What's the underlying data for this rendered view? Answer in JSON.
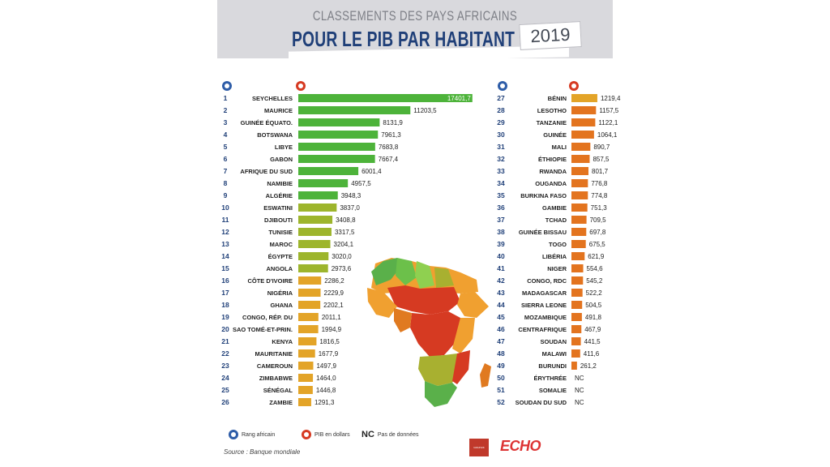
{
  "header": {
    "subtitle": "CLASSEMENTS DES PAYS AFRICAINS",
    "title": "POUR LE PIB PAR HABITANT",
    "year": "2019"
  },
  "legend": {
    "rank": "Rang africain",
    "gdp": "PIB en dollars",
    "nc_mark": "NC",
    "nc": "Pas de données"
  },
  "source": "Source : Banque mondiale",
  "logos": {
    "left": "GRAPHIK",
    "right": "ECHO"
  },
  "colors": {
    "title": "#1f3f78",
    "rank_icon": "#2e5da8",
    "gdp_icon": "#d63a22",
    "rank_number": "#1f3f78"
  },
  "chart_data": {
    "type": "bar",
    "title": "CLASSEMENTS DES PAYS AFRICAINS POUR LE PIB PAR HABITANT 2019",
    "ylabel": "PIB en dollars",
    "xlim": [
      0,
      17500
    ],
    "series": [
      {
        "name": "PIB par habitant (dollars)",
        "ranks": [
          1,
          2,
          3,
          4,
          5,
          6,
          7,
          8,
          9,
          10,
          11,
          12,
          13,
          14,
          15,
          16,
          17,
          18,
          19,
          20,
          21,
          22,
          23,
          24,
          25,
          26,
          27,
          28,
          29,
          30,
          31,
          32,
          33,
          34,
          35,
          36,
          37,
          38,
          39,
          40,
          41,
          42,
          43,
          44,
          45,
          46,
          47,
          48,
          49,
          50,
          51,
          52
        ],
        "categories": [
          "SEYCHELLES",
          "MAURICE",
          "GUINÉE ÉQUATO.",
          "BOTSWANA",
          "LIBYE",
          "GABON",
          "AFRIQUE DU SUD",
          "NAMIBIE",
          "ALGÉRIE",
          "ESWATINI",
          "DJIBOUTI",
          "TUNISIE",
          "MAROC",
          "ÉGYPTE",
          "ANGOLA",
          "CÔTE D'IVOIRE",
          "NIGÉRIA",
          "GHANA",
          "CONGO, RÉP. DU",
          "SAO TOMÉ-ET-PRIN.",
          "KENYA",
          "MAURITANIE",
          "CAMEROUN",
          "ZIMBABWE",
          "SÉNÉGAL",
          "ZAMBIE",
          "BÉNIN",
          "LESOTHO",
          "TANZANIE",
          "GUINÉE",
          "MALI",
          "ÉTHIOPIE",
          "RWANDA",
          "OUGANDA",
          "BURKINA FASO",
          "GAMBIE",
          "TCHAD",
          "GUINÉE BISSAU",
          "TOGO",
          "LIBÉRIA",
          "NIGER",
          "CONGO, RDC",
          "MADAGASCAR",
          "SIERRA LEONE",
          "MOZAMBIQUE",
          "CENTRAFRIQUE",
          "SOUDAN",
          "MALAWI",
          "BURUNDI",
          "ÉRYTHRÉE",
          "SOMALIE",
          "SOUDAN DU SUD"
        ],
        "values": [
          17401.7,
          11203.5,
          8131.9,
          7961.3,
          7683.8,
          7667.4,
          6001.4,
          4957.5,
          3948.3,
          3837.0,
          3408.8,
          3317.5,
          3204.1,
          3020.0,
          2973.6,
          2286.2,
          2229.9,
          2202.1,
          2011.1,
          1994.9,
          1816.5,
          1677.9,
          1497.9,
          1464.0,
          1446.8,
          1291.3,
          1219.4,
          1157.5,
          1122.1,
          1064.1,
          890.7,
          857.5,
          801.7,
          776.8,
          774.8,
          751.3,
          709.5,
          697.8,
          675.5,
          621.9,
          554.6,
          545.2,
          522.2,
          504.5,
          491.8,
          467.9,
          441.5,
          411.6,
          261.2,
          null,
          null,
          null
        ],
        "labels": [
          "17401,7",
          "11203,5",
          "8131,9",
          "7961,3",
          "7683,8",
          "7667,4",
          "6001,4",
          "4957,5",
          "3948,3",
          "3837,0",
          "3408,8",
          "3317,5",
          "3204,1",
          "3020,0",
          "2973,6",
          "2286,2",
          "2229,9",
          "2202,1",
          "2011,1",
          "1994,9",
          "1816,5",
          "1677,9",
          "1497,9",
          "1464,0",
          "1446,8",
          "1291,3",
          "1219,4",
          "1157,5",
          "1122,1",
          "1064,1",
          "890,7",
          "857,5",
          "801,7",
          "776,8",
          "774,8",
          "751,3",
          "709,5",
          "697,8",
          "675,5",
          "621,9",
          "554,6",
          "545,2",
          "522,2",
          "504,5",
          "491,8",
          "467,9",
          "441,5",
          "411,6",
          "261,2",
          "NC",
          "NC",
          "NC"
        ]
      }
    ]
  }
}
